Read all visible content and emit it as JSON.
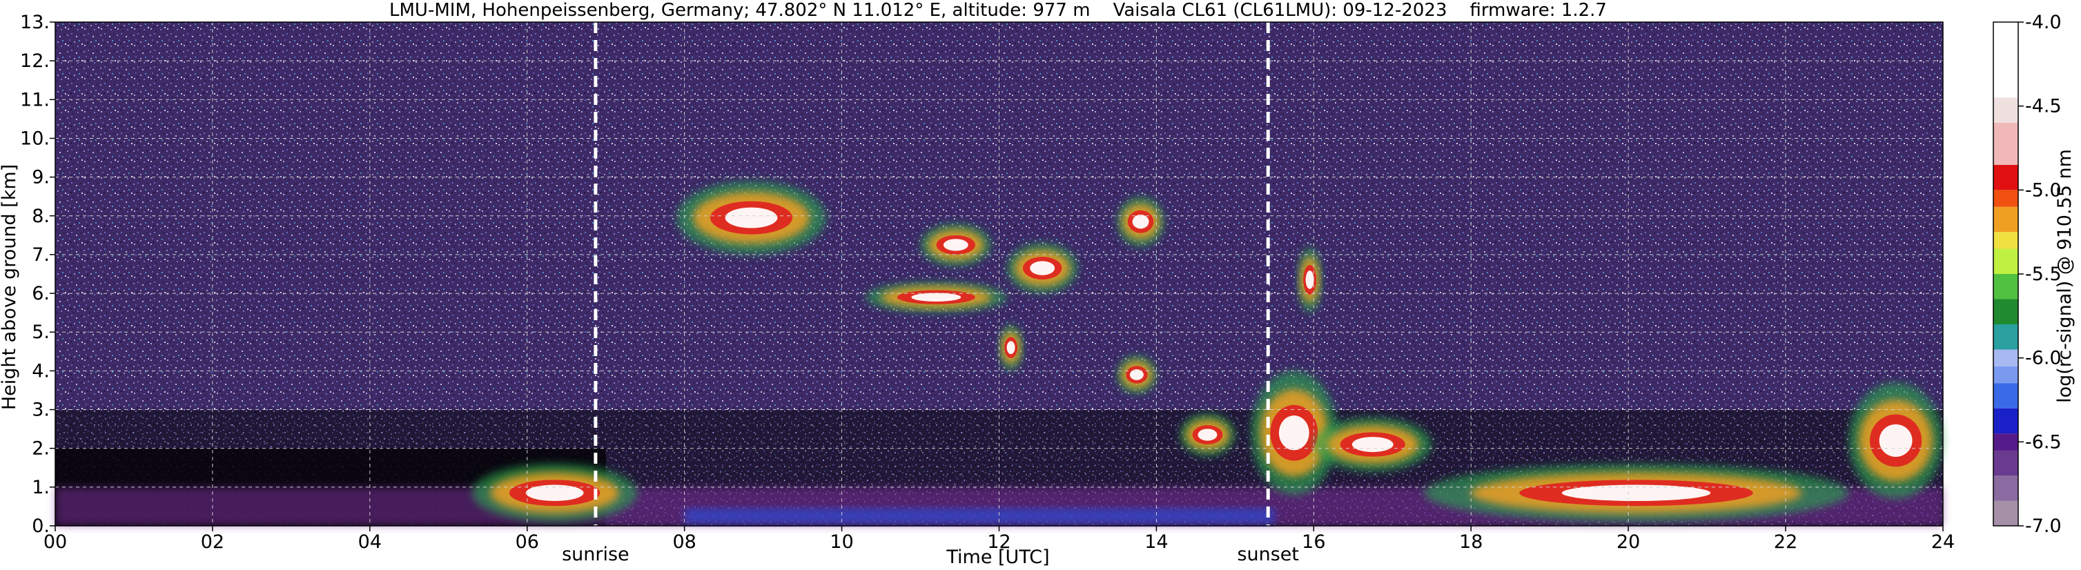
{
  "chart_data": {
    "type": "heatmap",
    "title": "LMU-MIM, Hohenpeissenberg, Germany; 47.802° N 11.012° E, altitude: 977 m    Vaisala CL61 (CL61LMU): 09-12-2023    firmware: 1.2.7",
    "xlabel": "Time [UTC]",
    "ylabel": "Height above ground [km]",
    "xlim": [
      0,
      24
    ],
    "ylim": [
      0,
      13
    ],
    "x_ticks": [
      0,
      2,
      4,
      6,
      8,
      10,
      12,
      14,
      16,
      18,
      20,
      22,
      24
    ],
    "x_tick_labels": [
      "00",
      "02",
      "04",
      "06",
      "08",
      "10",
      "12",
      "14",
      "16",
      "18",
      "20",
      "22",
      "24"
    ],
    "y_ticks": [
      0,
      1,
      2,
      3,
      4,
      5,
      6,
      7,
      8,
      9,
      10,
      11,
      12,
      13
    ],
    "y_tick_labels": [
      "0.",
      "1.",
      "2.",
      "3.",
      "4.",
      "5.",
      "6.",
      "7.",
      "8.",
      "9.",
      "10.",
      "11.",
      "12.",
      "13."
    ],
    "grid": true,
    "annotations": [
      {
        "label": "sunrise",
        "x": 6.87
      },
      {
        "label": "sunset",
        "x": 15.42
      }
    ],
    "colorbar": {
      "label": "log(rc-signal) @ 910.55 nm",
      "range": [
        -7.0,
        -4.0
      ],
      "ticks": [
        -7.0,
        -6.5,
        -6.0,
        -5.5,
        -5.0,
        -4.5,
        -4.0
      ],
      "tick_labels": [
        "-7.0",
        "-6.5",
        "-6.0",
        "-5.5",
        "-5.0",
        "-4.5",
        "-4.0"
      ]
    },
    "features": [
      {
        "kind": "boundary-layer-aerosol",
        "x": [
          0,
          24
        ],
        "y": [
          0,
          1.0
        ]
      },
      {
        "kind": "cloud",
        "x": [
          7.9,
          9.8
        ],
        "y": [
          7.0,
          8.9
        ]
      },
      {
        "kind": "cloud",
        "x": [
          10.3,
          12.1
        ],
        "y": [
          5.5,
          6.3
        ]
      },
      {
        "kind": "cloud",
        "x": [
          11.0,
          11.9
        ],
        "y": [
          6.7,
          7.8
        ]
      },
      {
        "kind": "cloud",
        "x": [
          12.0,
          12.3
        ],
        "y": [
          4.0,
          5.2
        ]
      },
      {
        "kind": "cloud",
        "x": [
          12.1,
          13.0
        ],
        "y": [
          6.0,
          7.3
        ]
      },
      {
        "kind": "cloud",
        "x": [
          13.5,
          14.1
        ],
        "y": [
          7.2,
          8.5
        ]
      },
      {
        "kind": "cloud",
        "x": [
          13.5,
          14.0
        ],
        "y": [
          3.4,
          4.4
        ]
      },
      {
        "kind": "cloud",
        "x": [
          14.3,
          15.0
        ],
        "y": [
          1.8,
          2.9
        ]
      },
      {
        "kind": "cloud",
        "x": [
          15.2,
          16.3
        ],
        "y": [
          0.8,
          4.0
        ]
      },
      {
        "kind": "cloud",
        "x": [
          15.8,
          16.1
        ],
        "y": [
          5.5,
          7.2
        ]
      },
      {
        "kind": "cloud",
        "x": [
          16.0,
          17.5
        ],
        "y": [
          1.4,
          2.8
        ]
      },
      {
        "kind": "cloud",
        "x": [
          17.4,
          22.8
        ],
        "y": [
          0.1,
          1.6
        ]
      },
      {
        "kind": "cloud",
        "x": [
          22.8,
          24.0
        ],
        "y": [
          0.7,
          3.7
        ]
      },
      {
        "kind": "cloud",
        "x": [
          5.3,
          7.4
        ],
        "y": [
          0.1,
          1.6
        ]
      }
    ]
  }
}
